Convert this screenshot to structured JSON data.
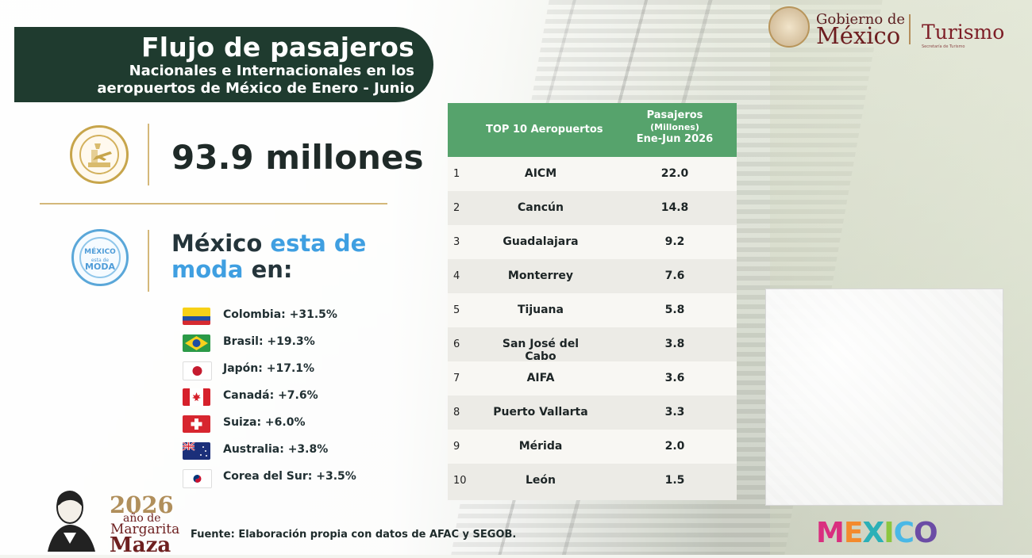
{
  "header": {
    "title": "Flujo de pasajeros",
    "subtitle": "Nacionales e Internacionales en los aeropuertos de México de Enero - Junio"
  },
  "summary": {
    "value": "93.9 millones"
  },
  "moda": {
    "text_1": "México",
    "text_2": "esta de",
    "text_3": "moda",
    "text_4": "en:"
  },
  "countries": [
    {
      "name": "Colombia: +31.5%",
      "icon": "colombia-flag-icon"
    },
    {
      "name": "Brasil: +19.3%",
      "icon": "brazil-flag-icon"
    },
    {
      "name": "Japón: +17.1%",
      "icon": "japan-flag-icon"
    },
    {
      "name": "Canadá: +7.6%",
      "icon": "canada-flag-icon"
    },
    {
      "name": "Suiza: +6.0%",
      "icon": "switzerland-flag-icon"
    },
    {
      "name": "Australia: +3.8%",
      "icon": "australia-flag-icon"
    },
    {
      "name": "Corea del Sur: +3.5%",
      "icon": "south-korea-flag-icon"
    }
  ],
  "table": {
    "col1": "TOP 10 Aeropuertos",
    "col2_line1": "Pasajeros",
    "col2_line2": "(Millones)",
    "col2_line3": "Ene-Jun 2026",
    "rows": [
      {
        "rank": "1",
        "airport": "AICM",
        "value": "22.0"
      },
      {
        "rank": "2",
        "airport": "Cancún",
        "value": "14.8"
      },
      {
        "rank": "3",
        "airport": "Guadalajara",
        "value": "9.2"
      },
      {
        "rank": "4",
        "airport": "Monterrey",
        "value": "7.6"
      },
      {
        "rank": "5",
        "airport": "Tijuana",
        "value": "5.8"
      },
      {
        "rank": "6",
        "airport": "San José del Cabo",
        "value": "3.8"
      },
      {
        "rank": "7",
        "airport": "AIFA",
        "value": "3.6"
      },
      {
        "rank": "8",
        "airport": "Puerto Vallarta",
        "value": "3.3"
      },
      {
        "rank": "9",
        "airport": "Mérida",
        "value": "2.0"
      },
      {
        "rank": "10",
        "airport": "León",
        "value": "1.5"
      }
    ]
  },
  "footer": {
    "source": "Fuente: Elaboración propia con datos de AFAC y SEGOB."
  },
  "logos": {
    "gob_top": "Gobierno de",
    "gob_bottom": "México",
    "turismo": "Turismo",
    "turismo_sub": "Secretaría de Turismo",
    "mexico_brand": "MEXICO",
    "year": "2026",
    "year_sub1": "año de",
    "year_sub2": "Margarita",
    "year_sub3": "Maza"
  },
  "colors": {
    "banner": "#1f3b2f",
    "table_header": "#56a36c",
    "accent_blue": "#3f9fe1",
    "gold": "#c7a54b"
  }
}
